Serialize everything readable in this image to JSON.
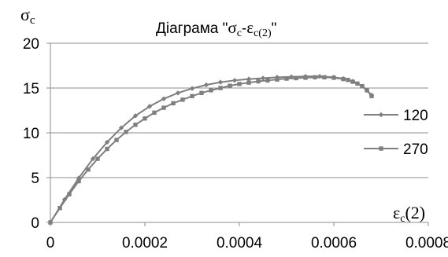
{
  "chart_data": {
    "type": "line",
    "title": {
      "prefix": "Діаграма \"",
      "sigma": "σ",
      "sigma_sub": "c",
      "dash": "-",
      "eps": "ε",
      "eps_sub": "c(2)",
      "suffix": "\""
    },
    "ylabel": {
      "symbol": "σ",
      "sub": "c"
    },
    "xlabel": {
      "symbol": "ε",
      "sub": "c",
      "paren": "(2)"
    },
    "xlim": [
      0,
      0.0008
    ],
    "ylim": [
      0,
      20
    ],
    "x_ticks": [
      "0",
      "0.0002",
      "0.0004",
      "0.0006",
      "0.0008"
    ],
    "y_ticks": [
      "0",
      "5",
      "10",
      "15",
      "20"
    ],
    "grid": {
      "horizontal": true,
      "vertical": false
    },
    "legend_position": "right",
    "colors": {
      "line": "#7f7f7f",
      "grid": "#8c8c8c",
      "axis": "#8c8c8c"
    },
    "series": [
      {
        "name": "120",
        "marker": "diamond",
        "x": [
          0,
          3e-05,
          6e-05,
          9e-05,
          0.00012,
          0.00015,
          0.00018,
          0.00021,
          0.00024,
          0.00027,
          0.0003,
          0.00033,
          0.00036,
          0.00039,
          0.00042,
          0.00045,
          0.00048,
          0.00051,
          0.00054,
          0.00057,
          0.0006,
          0.00062,
          0.00064,
          0.00066,
          0.00067,
          0.00068
        ],
        "y": [
          0,
          2.55,
          4.95,
          7.1,
          8.95,
          10.55,
          11.9,
          12.95,
          13.8,
          14.45,
          14.95,
          15.35,
          15.65,
          15.85,
          16.0,
          16.1,
          16.2,
          16.25,
          16.3,
          16.3,
          16.2,
          16.05,
          15.75,
          15.2,
          14.75,
          14.2
        ]
      },
      {
        "name": "270",
        "marker": "square",
        "x": [
          0,
          2e-05,
          4e-05,
          6e-05,
          8e-05,
          0.0001,
          0.00012,
          0.00014,
          0.00016,
          0.00018,
          0.0002,
          0.00022,
          0.00024,
          0.00026,
          0.00028,
          0.0003,
          0.00032,
          0.00034,
          0.00036,
          0.00038,
          0.0004,
          0.00042,
          0.00044,
          0.00046,
          0.00048,
          0.0005,
          0.00052,
          0.00054,
          0.00056,
          0.00058,
          0.0006,
          0.00062,
          0.00063,
          0.00064,
          0.00065,
          0.00066,
          0.00067,
          0.00068
        ],
        "y": [
          0,
          1.6,
          3.15,
          4.6,
          5.9,
          7.1,
          8.2,
          9.2,
          10.1,
          10.9,
          11.6,
          12.25,
          12.8,
          13.3,
          13.7,
          14.1,
          14.45,
          14.75,
          15.0,
          15.25,
          15.45,
          15.6,
          15.75,
          15.85,
          15.95,
          16.05,
          16.1,
          16.15,
          16.2,
          16.2,
          16.15,
          16.0,
          15.9,
          15.7,
          15.5,
          15.2,
          14.75,
          14.1
        ]
      }
    ]
  }
}
